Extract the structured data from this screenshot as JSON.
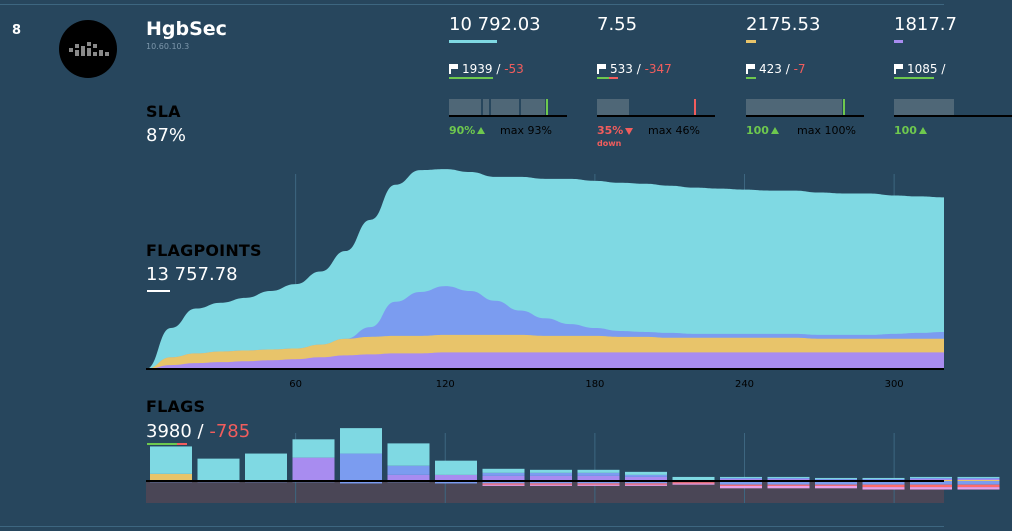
{
  "team": {
    "rank": "8",
    "name": "HgbSec",
    "ip": "10.60.10.3",
    "logo_icon": "team-logo-pixel-icon"
  },
  "sla": {
    "label": "SLA",
    "value": "87%"
  },
  "flagpoints": {
    "label": "FLAGPOINTS",
    "value": "13 757.78"
  },
  "flags": {
    "label": "FLAGS",
    "captured": "3980",
    "sep": " / ",
    "lost": "-785"
  },
  "services": [
    {
      "score": "10 792.03",
      "color": "#7fd9e3",
      "bar_fraction": 1.0,
      "flags_captured": "1939",
      "flags_lost": "-53",
      "sla_pct": "90%",
      "sla_trend": "up",
      "sla_max": "max 93%",
      "sla_current": 0.9
    },
    {
      "score": "7.55",
      "color": "#ff6b6b",
      "bar_fraction": 0.0,
      "flags_captured": "533",
      "flags_lost": "-347",
      "sla_pct": "35%",
      "sla_trend": "down",
      "sla_down_label": "down",
      "sla_max": "max 46%",
      "sla_current": 0.35
    },
    {
      "score": "2175.53",
      "color": "#e8c46a",
      "bar_fraction": 0.2,
      "flags_captured": "423",
      "flags_lost": "-7",
      "sla_pct": "100",
      "sla_trend": "up",
      "sla_max": "max 100%",
      "sla_current": 1.0
    },
    {
      "score": "1817.7",
      "color": "#a88cf0",
      "bar_fraction": 0.17,
      "flags_captured": "1085",
      "flags_lost": "",
      "sla_pct": "100",
      "sla_trend": "up",
      "sla_max": "",
      "sla_current": 1.0
    }
  ],
  "chart_data": [
    {
      "type": "area",
      "stacked": true,
      "x": [
        0,
        10,
        20,
        30,
        40,
        50,
        60,
        70,
        80,
        90,
        100,
        110,
        120,
        130,
        140,
        150,
        160,
        170,
        180,
        190,
        200,
        210,
        220,
        230,
        240,
        250,
        260,
        270,
        280,
        290,
        300,
        310,
        320
      ],
      "xticks": [
        60,
        120,
        180,
        240,
        300
      ],
      "xlim": [
        0,
        320
      ],
      "series": [
        {
          "color": "#a88cf0",
          "values": [
            0,
            4,
            6,
            7,
            8,
            9,
            10,
            12,
            14,
            15,
            16,
            16,
            17,
            17,
            17,
            17,
            17,
            17,
            17,
            17,
            17,
            17,
            17,
            17,
            17,
            17,
            17,
            17,
            17,
            17,
            17,
            17,
            17
          ]
        },
        {
          "color": "#e8c46a",
          "values": [
            0,
            8,
            10,
            11,
            11,
            11,
            11,
            13,
            17,
            18,
            18,
            18,
            18,
            18,
            18,
            18,
            17,
            17,
            17,
            16,
            16,
            15,
            15,
            15,
            15,
            15,
            15,
            14,
            14,
            14,
            14,
            14,
            14
          ]
        },
        {
          "color": "#7b9cf0",
          "values": [
            0,
            0,
            0,
            0,
            0,
            0,
            0,
            0,
            0,
            10,
            35,
            45,
            50,
            45,
            35,
            25,
            18,
            12,
            8,
            6,
            5,
            5,
            4,
            4,
            4,
            4,
            4,
            4,
            4,
            4,
            5,
            6,
            7
          ]
        },
        {
          "color": "#7fd9e3",
          "values": [
            0,
            30,
            46,
            50,
            54,
            60,
            66,
            75,
            90,
            110,
            120,
            125,
            120,
            122,
            127,
            137,
            143,
            149,
            151,
            152,
            152,
            151,
            150,
            149,
            148,
            147,
            147,
            146,
            145,
            145,
            142,
            140,
            138
          ]
        }
      ],
      "ylim": [
        0,
        200
      ]
    },
    {
      "type": "bar",
      "stacked": true,
      "series": [
        {
          "color": "#7fd9e3",
          "values": [
            27,
            22,
            27,
            18,
            25,
            22,
            14,
            4,
            3,
            3,
            3,
            3,
            1,
            1,
            1,
            1,
            1,
            1
          ]
        },
        {
          "color": "#7b9cf0",
          "values": [
            0,
            0,
            0,
            0,
            27,
            9,
            0,
            3,
            3,
            3,
            2,
            0,
            1,
            1,
            1,
            1,
            1,
            1
          ]
        },
        {
          "color": "#a88cf0",
          "values": [
            0,
            0,
            0,
            23,
            0,
            6,
            6,
            5,
            5,
            5,
            4,
            1,
            1,
            1,
            1,
            1,
            1,
            1
          ]
        },
        {
          "color": "#e8c46a",
          "values": [
            7,
            0,
            0,
            0,
            0,
            0,
            0,
            0,
            0,
            0,
            0,
            0,
            1,
            1,
            0,
            0,
            1,
            1
          ]
        }
      ],
      "losses": [
        {
          "color": "#7b9cf0",
          "values": [
            1,
            1,
            1,
            1,
            2,
            1,
            2,
            2,
            2,
            2,
            2,
            1,
            3,
            3,
            3,
            3,
            3,
            3
          ]
        },
        {
          "color": "#ff6b6b",
          "values": [
            0,
            0,
            0,
            0,
            0,
            0,
            0,
            1,
            1,
            1,
            1,
            1,
            1,
            1,
            1,
            2,
            2,
            2
          ]
        },
        {
          "color": "#e8a0e8",
          "values": [
            0,
            0,
            0,
            0,
            0,
            0,
            0,
            1,
            1,
            1,
            1,
            1,
            2,
            2,
            2,
            2,
            2,
            2
          ]
        }
      ],
      "ylim": [
        0,
        60
      ]
    }
  ]
}
